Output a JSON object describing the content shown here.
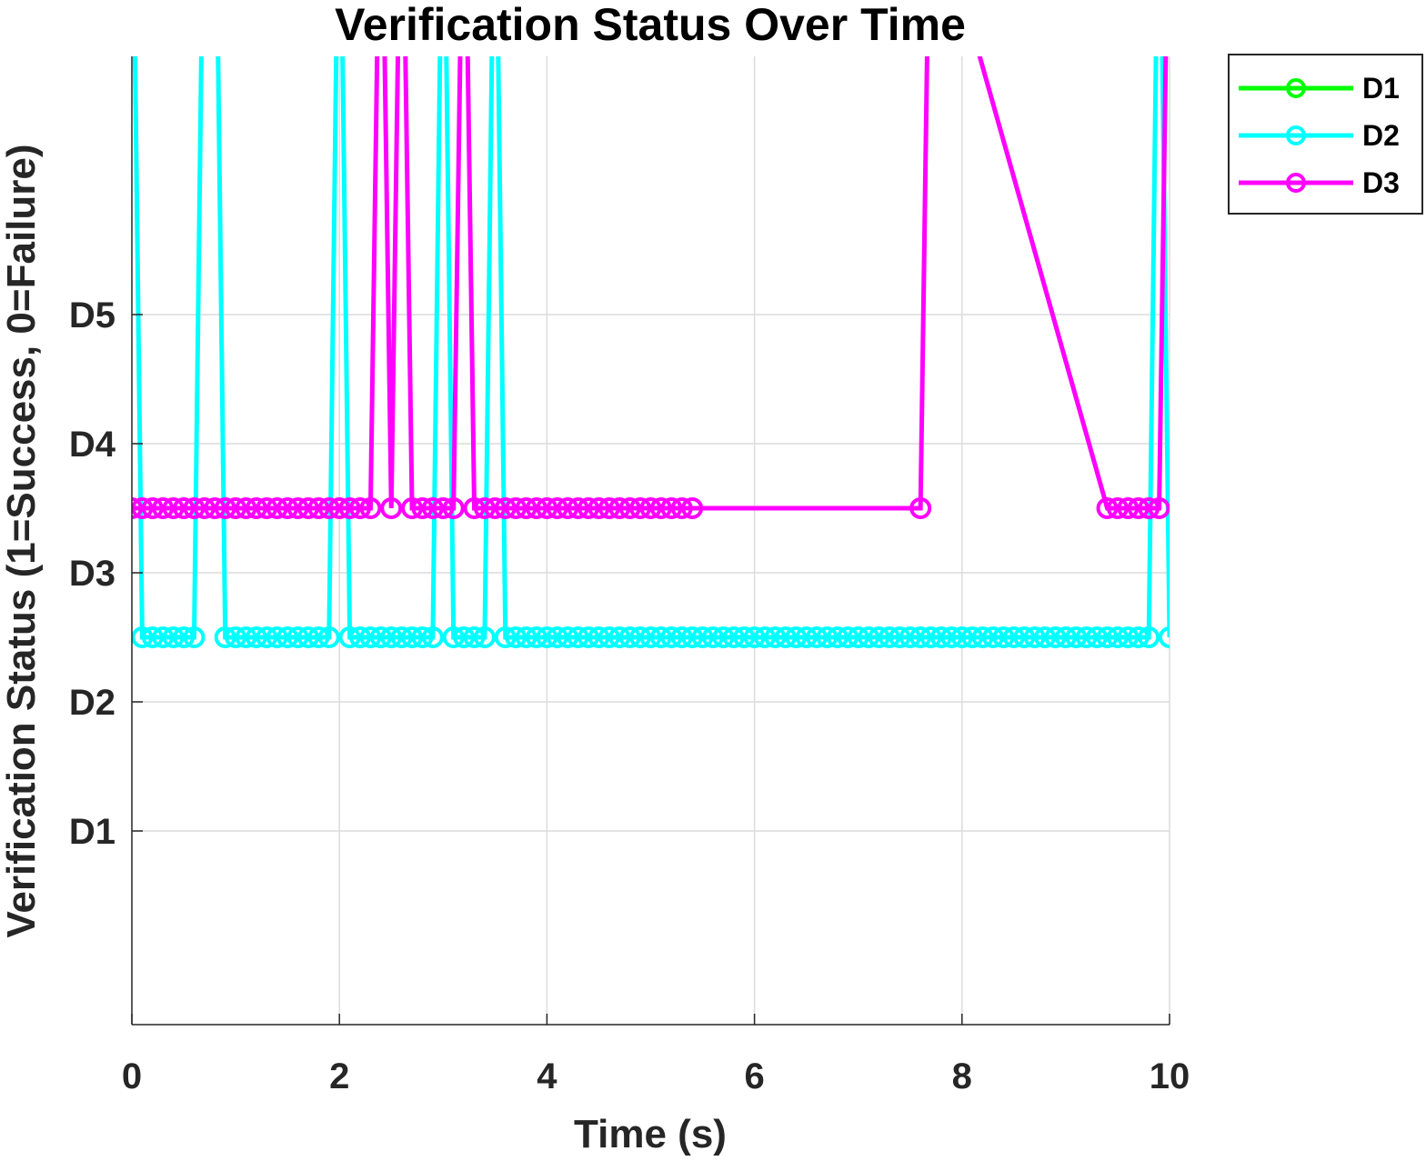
{
  "chart_data": {
    "type": "line",
    "title": "Verification Status Over Time",
    "xlabel": "Time (s)",
    "ylabel": "Verification Status (1=Success, 0=Failure)",
    "xlim": [
      0,
      10
    ],
    "ylim": [
      -0.5,
      7
    ],
    "xticks": [
      0,
      2,
      4,
      6,
      8,
      10
    ],
    "xtick_labels": [
      "0",
      "2",
      "4",
      "6",
      "8",
      "10"
    ],
    "yticks": [
      1,
      2,
      3,
      4,
      5
    ],
    "ytick_labels": [
      "D1",
      "D2",
      "D3",
      "D4",
      "D5"
    ],
    "grid": true,
    "legend_position": "top-right",
    "series": [
      {
        "name": "D1",
        "color": "#00ff00",
        "x": [],
        "y": []
      },
      {
        "name": "D2",
        "color": "#00ffff",
        "x": [
          0,
          0.1,
          0.2,
          0.3,
          0.4,
          0.5,
          0.6,
          0.7,
          0.8,
          0.9,
          1.0,
          1.1,
          1.2,
          1.3,
          1.4,
          1.5,
          1.6,
          1.7,
          1.8,
          1.9,
          2.0,
          2.1,
          2.2,
          2.3,
          2.4,
          2.5,
          2.6,
          2.7,
          2.8,
          2.9,
          3.0,
          3.1,
          3.2,
          3.3,
          3.4,
          3.5,
          3.6,
          3.7,
          3.8,
          3.9,
          4.0,
          4.1,
          4.2,
          4.3,
          4.4,
          4.5,
          4.6,
          4.7,
          4.8,
          4.9,
          5.0,
          5.1,
          5.2,
          5.3,
          5.4,
          5.5,
          5.6,
          5.7,
          5.8,
          5.9,
          6.0,
          6.1,
          6.2,
          6.3,
          6.4,
          6.5,
          6.6,
          6.7,
          6.8,
          6.9,
          7.0,
          7.1,
          7.2,
          7.3,
          7.4,
          7.5,
          7.6,
          7.7,
          7.8,
          7.9,
          8.0,
          8.1,
          8.2,
          8.3,
          8.4,
          8.5,
          8.6,
          8.7,
          8.8,
          8.9,
          9.0,
          9.1,
          9.2,
          9.3,
          9.4,
          9.5,
          9.6,
          9.7,
          9.8,
          9.9,
          10.0
        ],
        "y": [
          9,
          2.5,
          2.5,
          2.5,
          2.5,
          2.5,
          2.5,
          9,
          9,
          2.5,
          2.5,
          2.5,
          2.5,
          2.5,
          2.5,
          2.5,
          2.5,
          2.5,
          2.5,
          2.5,
          9,
          2.5,
          2.5,
          2.5,
          2.5,
          2.5,
          2.5,
          2.5,
          2.5,
          2.5,
          9,
          2.5,
          2.5,
          2.5,
          2.5,
          9,
          2.5,
          2.5,
          2.5,
          2.5,
          2.5,
          2.5,
          2.5,
          2.5,
          2.5,
          2.5,
          2.5,
          2.5,
          2.5,
          2.5,
          2.5,
          2.5,
          2.5,
          2.5,
          2.5,
          2.5,
          2.5,
          2.5,
          2.5,
          2.5,
          2.5,
          2.5,
          2.5,
          2.5,
          2.5,
          2.5,
          2.5,
          2.5,
          2.5,
          2.5,
          2.5,
          2.5,
          2.5,
          2.5,
          2.5,
          2.5,
          2.5,
          2.5,
          2.5,
          2.5,
          2.5,
          2.5,
          2.5,
          2.5,
          2.5,
          2.5,
          2.5,
          2.5,
          2.5,
          2.5,
          2.5,
          2.5,
          2.5,
          2.5,
          2.5,
          2.5,
          2.5,
          2.5,
          2.5,
          9,
          2.5
        ]
      },
      {
        "name": "D3",
        "color": "#ff00ff",
        "x": [
          0,
          0.1,
          0.2,
          0.3,
          0.4,
          0.5,
          0.6,
          0.7,
          0.8,
          0.9,
          1.0,
          1.1,
          1.2,
          1.3,
          1.4,
          1.5,
          1.6,
          1.7,
          1.8,
          1.9,
          2.0,
          2.1,
          2.2,
          2.3,
          2.4,
          2.5,
          2.6,
          2.7,
          2.8,
          2.9,
          3.0,
          3.1,
          3.2,
          3.3,
          3.4,
          3.5,
          3.6,
          3.7,
          3.8,
          3.9,
          4.0,
          4.1,
          4.2,
          4.3,
          4.4,
          4.5,
          4.6,
          4.7,
          4.8,
          4.9,
          5.0,
          5.1,
          5.2,
          5.3,
          5.4,
          7.6,
          7.7,
          8.1,
          9.4,
          9.5,
          9.6,
          9.7,
          9.8,
          9.9,
          10.0
        ],
        "y": [
          3.5,
          3.5,
          3.5,
          3.5,
          3.5,
          3.5,
          3.5,
          3.5,
          3.5,
          3.5,
          3.5,
          3.5,
          3.5,
          3.5,
          3.5,
          3.5,
          3.5,
          3.5,
          3.5,
          3.5,
          3.5,
          3.5,
          3.5,
          3.5,
          9,
          3.5,
          9,
          3.5,
          3.5,
          3.5,
          3.5,
          3.5,
          9,
          3.5,
          3.5,
          3.5,
          3.5,
          3.5,
          3.5,
          3.5,
          3.5,
          3.5,
          3.5,
          3.5,
          3.5,
          3.5,
          3.5,
          3.5,
          3.5,
          3.5,
          3.5,
          3.5,
          3.5,
          3.5,
          3.5,
          3.5,
          9,
          7.2,
          3.5,
          3.5,
          3.5,
          3.5,
          3.5,
          3.5,
          9
        ]
      }
    ]
  }
}
